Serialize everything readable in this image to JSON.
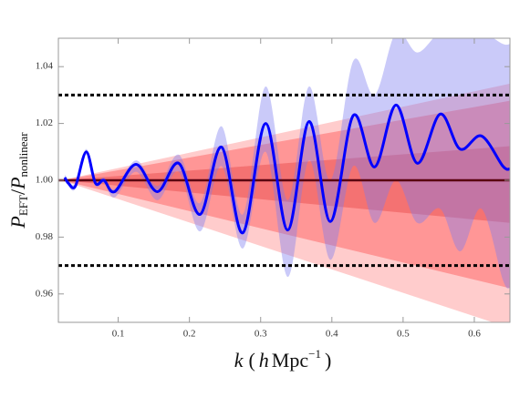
{
  "chart_data": {
    "type": "line",
    "xlabel": [
      "k",
      "(",
      "h",
      "Mpc",
      "−1",
      ")"
    ],
    "ylabel": [
      "P",
      "EFT",
      "/",
      "P",
      "nonlinear"
    ],
    "xlim": [
      0.016,
      0.65
    ],
    "ylim": [
      0.95,
      1.05
    ],
    "xticks": [
      0.1,
      0.2,
      0.3,
      0.4,
      0.5,
      0.6
    ],
    "yticks": [
      0.96,
      0.98,
      {
        "value": 1,
        "label": "1.00"
      },
      1.02,
      1.04
    ],
    "x": [
      0.025,
      0.03,
      0.04,
      0.055,
      0.068,
      0.08,
      0.095,
      0.125,
      0.155,
      0.185,
      0.215,
      0.245,
      0.275,
      0.307,
      0.338,
      0.368,
      0.398,
      0.43,
      0.46,
      0.49,
      0.52,
      0.552,
      0.58,
      0.61,
      0.64,
      0.65
    ],
    "line": {
      "color": "#0000ff",
      "values": [
        1.001,
        0.999,
        0.998,
        1.01,
        0.999,
        1.0,
        0.996,
        1.0056,
        0.996,
        1.006,
        0.988,
        1.0117,
        0.9815,
        1.02,
        0.9825,
        1.0207,
        0.9855,
        1.0228,
        1.0047,
        1.0265,
        1.006,
        1.0233,
        1.011,
        1.0156,
        1.005,
        1.004
      ]
    },
    "band": {
      "color": "#7b7bf0",
      "opacity": 0.4,
      "upper": [
        1.002,
        1.0,
        0.999,
        1.011,
        1.0,
        1.001,
        0.997,
        1.007,
        0.998,
        1.009,
        0.992,
        1.019,
        0.988,
        1.033,
        0.993,
        1.033,
        1.0,
        1.042,
        1.03,
        1.052,
        1.045,
        1.052,
        1.05,
        1.052,
        1.048,
        1.048
      ],
      "lower": [
        1.0,
        0.998,
        0.997,
        1.009,
        0.998,
        0.999,
        0.994,
        1.003,
        0.993,
        1.003,
        0.982,
        1.005,
        0.976,
        1.01,
        0.966,
        1.007,
        0.972,
        1.005,
        0.985,
        1.0,
        0.985,
        0.99,
        0.975,
        0.99,
        0.965,
        0.962
      ]
    },
    "fans": [
      {
        "color": "#ffaaaa",
        "opacity": 0.6,
        "x": [
          0.02,
          0.65
        ],
        "upper": [
          1.0,
          1.034
        ],
        "lower": [
          1.0,
          0.948
        ]
      },
      {
        "color": "#ff5555",
        "opacity": 0.45,
        "x": [
          0.02,
          0.65
        ],
        "upper": [
          1.0,
          1.028
        ],
        "lower": [
          1.0,
          0.962
        ]
      },
      {
        "color": "#e03030",
        "opacity": 0.35,
        "x": [
          0.02,
          0.65
        ],
        "upper": [
          1.0,
          1.012
        ],
        "lower": [
          1.0,
          0.985
        ]
      }
    ],
    "hlines": [
      {
        "y": 1.03,
        "color": "#000000",
        "dashed": true
      },
      {
        "y": 0.97,
        "color": "#000000",
        "dashed": true
      },
      {
        "y": 1.0,
        "color": "#5a0010",
        "dashed": false
      }
    ]
  }
}
